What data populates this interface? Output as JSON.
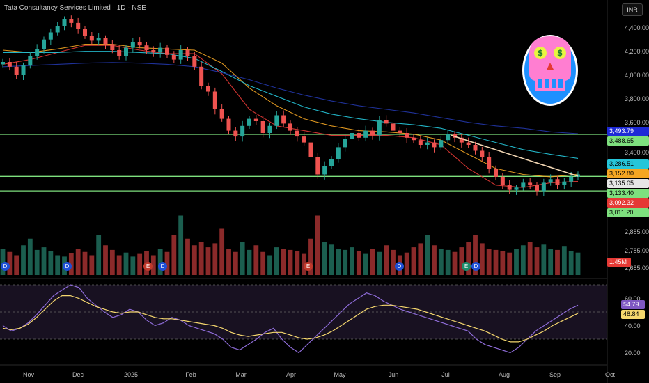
{
  "header": {
    "title": "Tata Consultancy Services Limited · 1D · NSE",
    "currency": "INR"
  },
  "chart_data": {
    "type": "candlestick",
    "symbol": "Tata Consultancy Services Limited",
    "interval": "1D",
    "exchange": "NSE",
    "x_ticks": [
      "Nov",
      "Dec",
      "2025",
      "Feb",
      "Mar",
      "Apr",
      "May",
      "Jun",
      "Jul",
      "Aug",
      "Sep",
      "Oct"
    ],
    "y_ticks": [
      "4,400.00",
      "4,200.00",
      "4,000.00",
      "3,800.00",
      "3,600.00",
      "3,400.00",
      "2,885.00",
      "2,785.00",
      "2,685.00"
    ],
    "price_range": [
      2930,
      4480
    ],
    "horizontal_levels": [
      3488.65,
      3133.4,
      3011.2
    ],
    "trendline": {
      "from": [
        "Jul",
        3480
      ],
      "to": [
        "Sep",
        3135
      ]
    },
    "price_labels": [
      {
        "value": "3,493.79",
        "color": "#1e2ad6",
        "text_color": "#ffffff"
      },
      {
        "value": "3,488.65",
        "color": "#7ee07e",
        "text_color": "#000000"
      },
      {
        "value": "3,286.51",
        "color": "#26c6da",
        "text_color": "#000000"
      },
      {
        "value": "3,152.80",
        "color": "#f5a623",
        "text_color": "#000000"
      },
      {
        "value": "3,135.05",
        "color": "#e6e6e6",
        "text_color": "#000000"
      },
      {
        "value": "3,133.40",
        "color": "#7ee07e",
        "text_color": "#000000"
      },
      {
        "value": "3,092.32",
        "color": "#e53935",
        "text_color": "#ffffff"
      },
      {
        "value": "3,011.20",
        "color": "#7ee07e",
        "text_color": "#000000"
      }
    ],
    "volume_label": "1.45M",
    "events": [
      "D",
      "D",
      "E",
      "D",
      "E",
      "D",
      "E",
      "D"
    ],
    "closes": [
      4100,
      4060,
      3990,
      4070,
      4150,
      4210,
      4290,
      4350,
      4400,
      4460,
      4430,
      4380,
      4320,
      4280,
      4300,
      4250,
      4200,
      4150,
      4220,
      4270,
      4240,
      4200,
      4180,
      4220,
      4160,
      4120,
      4200,
      4150,
      4060,
      3900,
      3850,
      3700,
      3620,
      3520,
      3470,
      3560,
      3620,
      3600,
      3500,
      3560,
      3650,
      3580,
      3520,
      3470,
      3420,
      3300,
      3150,
      3220,
      3280,
      3380,
      3450,
      3500,
      3460,
      3520,
      3480,
      3610,
      3580,
      3520,
      3500,
      3460,
      3440,
      3400,
      3420,
      3380,
      3440,
      3490,
      3460,
      3420,
      3400,
      3350,
      3300,
      3200,
      3130,
      3060,
      3020,
      3040,
      3080,
      3060,
      3010,
      3080,
      3110,
      3060,
      3090,
      3130,
      3150
    ],
    "ma_series": [
      {
        "name": "",
        "color": "#e53935",
        "values": [
          4080,
          4120,
          4180,
          4240,
          4240,
          4200,
          4170,
          4170,
          4000,
          3700,
          3560,
          3520,
          3480,
          3480,
          3480,
          3460,
          3400,
          3200,
          3060,
          3040,
          3080,
          3092
        ]
      },
      {
        "name": "",
        "color": "#f5a623",
        "values": [
          4200,
          4180,
          4210,
          4250,
          4250,
          4220,
          4210,
          4200,
          4090,
          3880,
          3730,
          3620,
          3560,
          3520,
          3510,
          3490,
          3440,
          3320,
          3200,
          3150,
          3130,
          3152
        ]
      },
      {
        "name": "",
        "color": "#26c6da",
        "values": [
          4180,
          4180,
          4180,
          4190,
          4190,
          4180,
          4170,
          4130,
          4020,
          3900,
          3810,
          3720,
          3660,
          3620,
          3590,
          3570,
          3540,
          3480,
          3420,
          3360,
          3320,
          3286
        ]
      },
      {
        "name": "",
        "color": "#2236a8",
        "values": [
          4060,
          4070,
          4080,
          4090,
          4095,
          4090,
          4080,
          4060,
          4010,
          3950,
          3880,
          3820,
          3770,
          3730,
          3700,
          3670,
          3630,
          3590,
          3560,
          3540,
          3510,
          3494
        ]
      }
    ],
    "volume": [
      40,
      35,
      30,
      45,
      55,
      38,
      42,
      36,
      30,
      28,
      33,
      40,
      35,
      30,
      60,
      45,
      38,
      30,
      34,
      28,
      32,
      36,
      30,
      40,
      35,
      60,
      90,
      55,
      45,
      50,
      42,
      48,
      70,
      40,
      35,
      50,
      38,
      45,
      35,
      30,
      42,
      40,
      38,
      36,
      32,
      55,
      90,
      50,
      46,
      40,
      38,
      42,
      36,
      32,
      40,
      35,
      45,
      38,
      30,
      34,
      42,
      48,
      60,
      45,
      40,
      38,
      35,
      42,
      50,
      60,
      48,
      40,
      38,
      36,
      34,
      40,
      45,
      50,
      42,
      46,
      40,
      38,
      44,
      36,
      34
    ],
    "rsi": {
      "ticks": [
        "60.00",
        "40.00",
        "20.00"
      ],
      "upper_band": 70,
      "lower_band": 30,
      "rsi_label": "54.79",
      "ma_label": "48.84",
      "values": [
        40,
        36,
        38,
        42,
        48,
        55,
        62,
        66,
        70,
        68,
        60,
        55,
        50,
        46,
        48,
        52,
        50,
        44,
        40,
        42,
        46,
        44,
        40,
        38,
        36,
        34,
        30,
        24,
        22,
        26,
        30,
        35,
        38,
        30,
        24,
        20,
        26,
        32,
        38,
        44,
        50,
        56,
        60,
        64,
        62,
        58,
        55,
        52,
        50,
        48,
        46,
        44,
        42,
        40,
        38,
        36,
        30,
        26,
        24,
        22,
        20,
        24,
        30,
        36,
        40,
        44,
        48,
        52,
        55
      ],
      "ma_values": [
        38,
        37,
        38,
        41,
        46,
        52,
        58,
        62,
        62,
        60,
        57,
        54,
        52,
        50,
        49,
        50,
        50,
        48,
        46,
        45,
        45,
        44,
        43,
        42,
        41,
        40,
        38,
        35,
        33,
        32,
        33,
        34,
        35,
        35,
        33,
        31,
        30,
        31,
        33,
        36,
        40,
        44,
        48,
        52,
        54,
        55,
        55,
        54,
        53,
        52,
        50,
        48,
        46,
        44,
        42,
        40,
        38,
        36,
        33,
        30,
        28,
        28,
        30,
        33,
        36,
        40,
        43,
        46,
        49
      ]
    }
  }
}
